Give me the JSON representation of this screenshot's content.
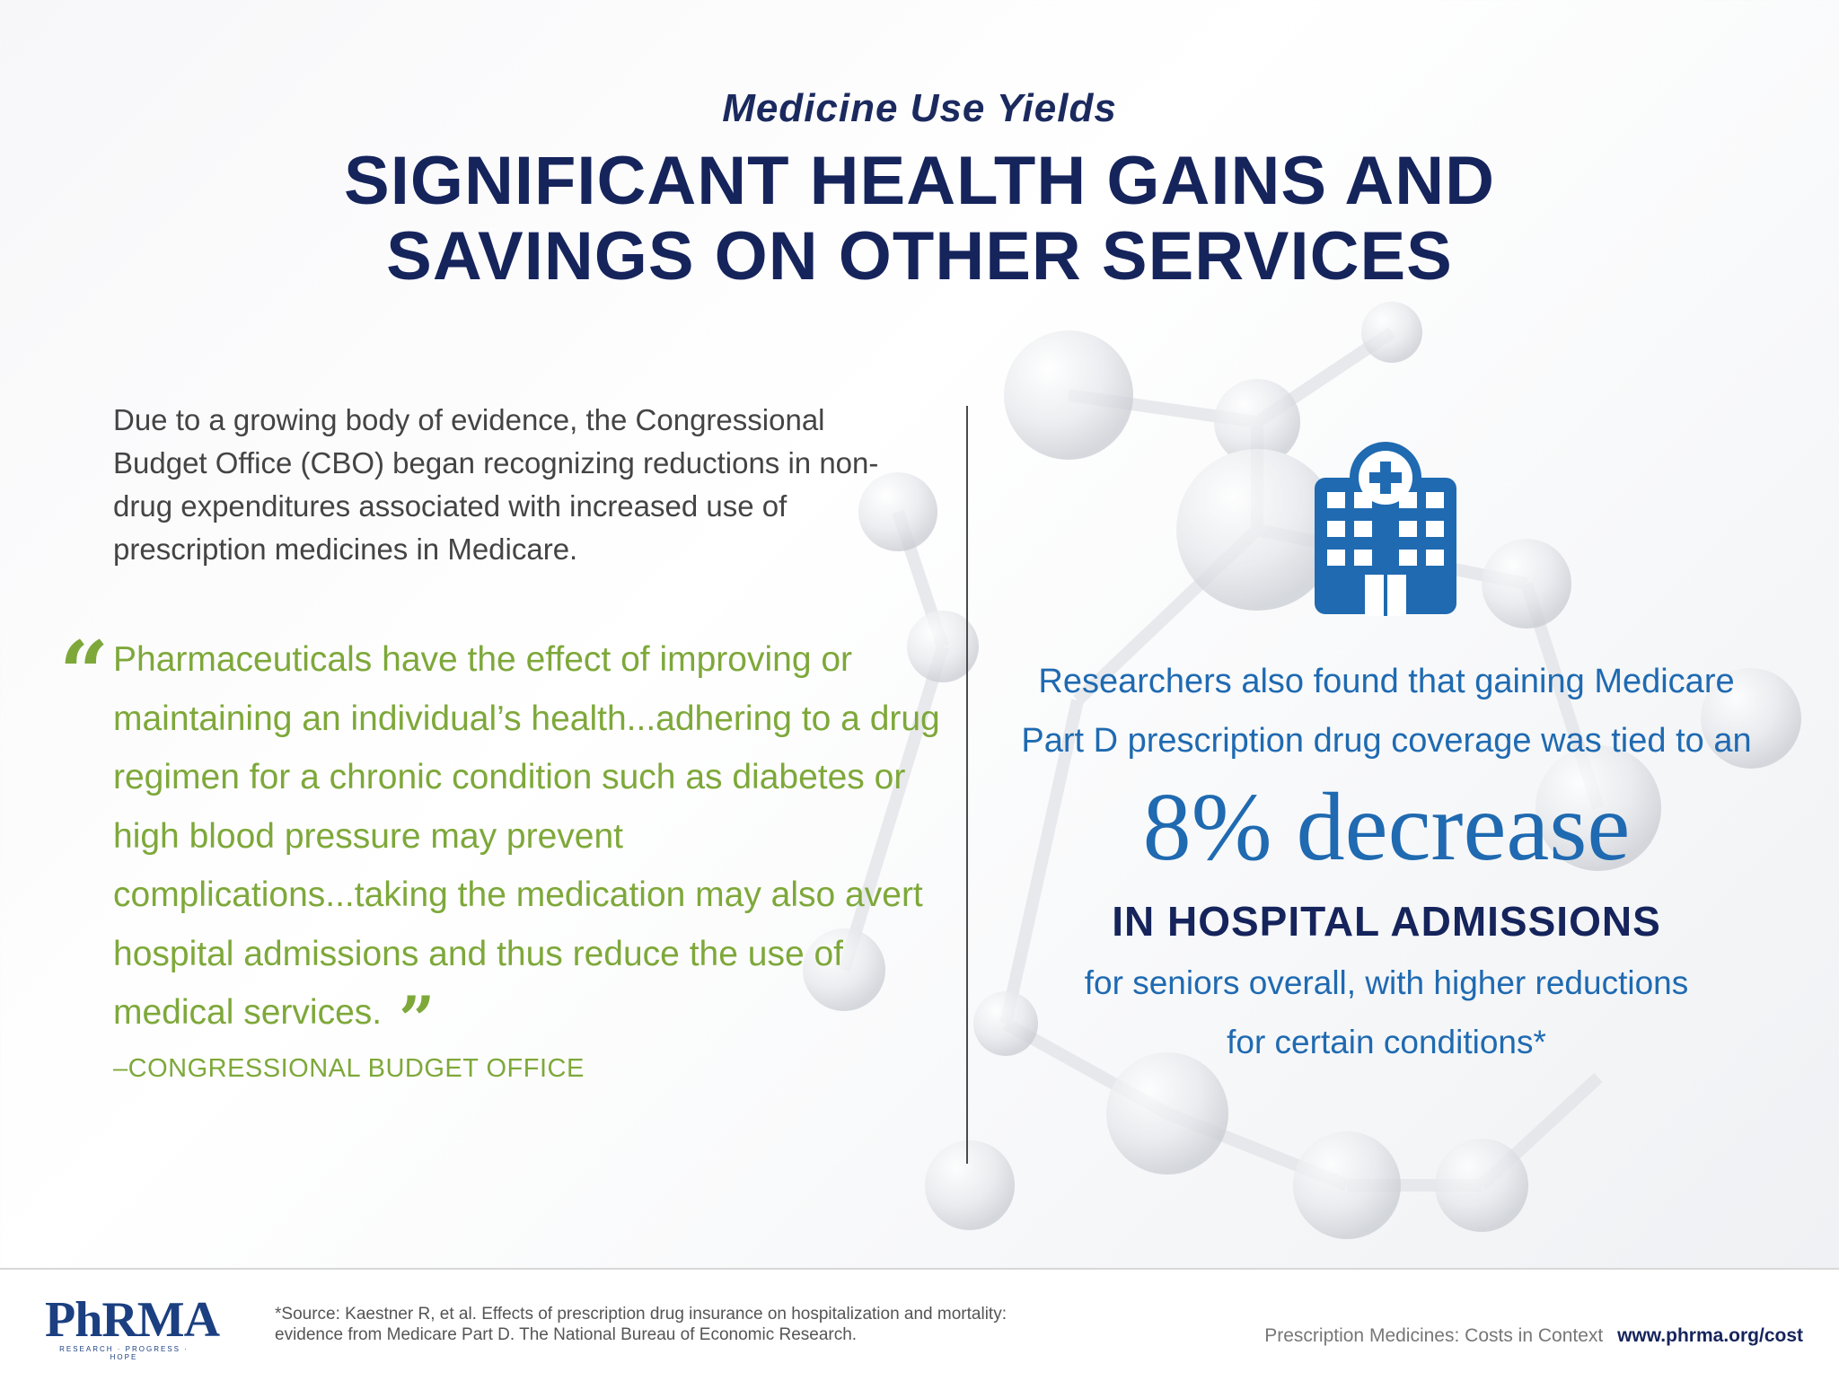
{
  "header": {
    "kicker": "Medicine Use Yields",
    "headline_line1": "SIGNIFICANT HEALTH GAINS AND",
    "headline_line2": "SAVINGS ON OTHER SERVICES"
  },
  "left": {
    "intro": "Due to a growing body of evidence, the Congressional Budget Office (CBO) began recognizing reductions in non-drug expenditures associated with increased use of prescription medicines in Medicare.",
    "quote_open_mark": "“",
    "quote": "Pharmaceuticals have the effect of improving or maintaining an individual’s health...adhering to a drug regimen for a chronic condition such as diabetes or high blood pressure may prevent complications...taking the medication may also avert hospital admissions and thus reduce the use of medical services.",
    "quote_close_mark": "”",
    "attribution": "–CONGRESSIONAL BUDGET OFFICE"
  },
  "right": {
    "icon": "hospital-icon",
    "research_line1": "Researchers also found that gaining Medicare",
    "research_line2": "Part D prescription drug coverage was tied to an",
    "big_stat": "8% decrease",
    "subhead": "IN HOSPITAL ADMISSIONS",
    "detail_line1": "for seniors overall, with higher reductions",
    "detail_line2": "for certain conditions*"
  },
  "footer": {
    "logo_text": "PhRMA",
    "logo_tagline": "RESEARCH · PROGRESS · HOPE",
    "source_line1": "*Source: Kaestner R, et al. Effects of prescription drug insurance on hospitalization and mortality:",
    "source_line2": "evidence from Medicare Part D. The National Bureau of Economic Research.",
    "series_label": "Prescription Medicines: Costs in Context",
    "url": "www.phrma.org/cost"
  },
  "colors": {
    "navy": "#16245c",
    "blue": "#1f6ab1",
    "green": "#7ea83a",
    "gray_text": "#444444"
  }
}
